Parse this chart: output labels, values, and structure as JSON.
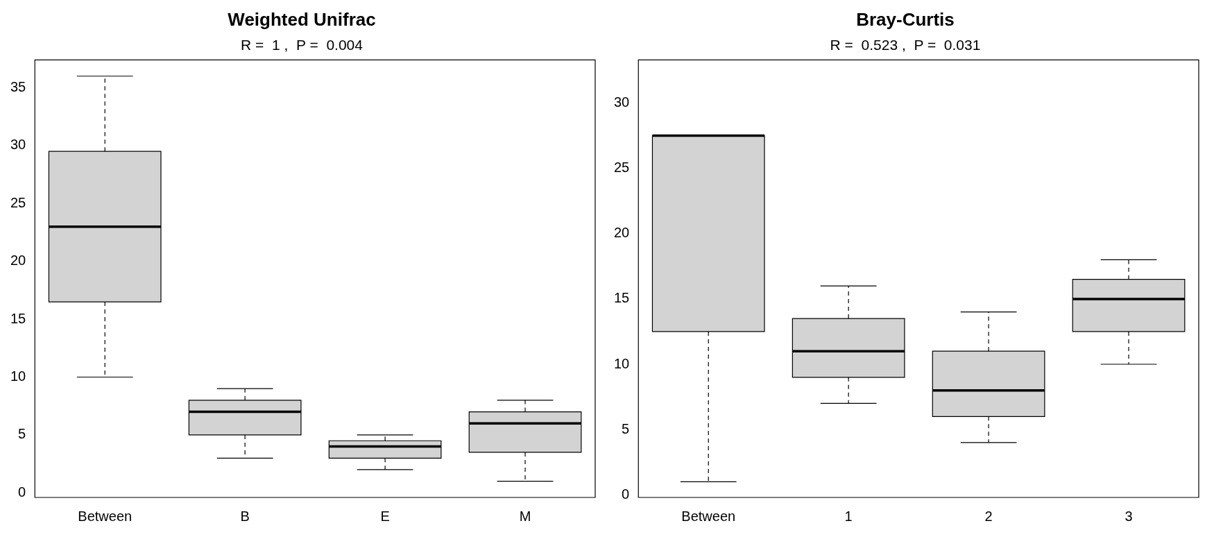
{
  "chart_data": [
    {
      "type": "box",
      "title": "Weighted Unifrac",
      "subtitle": "R =  1 ,  P =  0.004",
      "categories": [
        "Between",
        "B",
        "E",
        "M"
      ],
      "color": "#d3d3d3",
      "ylim": [
        -0.4,
        37.4
      ],
      "yticks": [
        0,
        5,
        10,
        15,
        20,
        25,
        30,
        35
      ],
      "boxes": [
        {
          "low": 10,
          "q1": 16.5,
          "median": 23,
          "q3": 29.5,
          "high": 36
        },
        {
          "low": 3,
          "q1": 5,
          "median": 7,
          "q3": 8,
          "high": 9
        },
        {
          "low": 2,
          "q1": 3,
          "median": 4,
          "q3": 4.5,
          "high": 5
        },
        {
          "low": 1,
          "q1": 3.5,
          "median": 6,
          "q3": 7,
          "high": 8
        }
      ]
    },
    {
      "type": "box",
      "title": "Bray-Curtis",
      "subtitle": "R =  0.523 ,  P =  0.031",
      "categories": [
        "Between",
        "1",
        "2",
        "3"
      ],
      "color": "#d3d3d3",
      "ylim": [
        -0.2,
        33.3
      ],
      "yticks": [
        0,
        5,
        10,
        15,
        20,
        25,
        30
      ],
      "boxes": [
        {
          "low": 1,
          "q1": 12.5,
          "median": 27.5,
          "q3": 27.5,
          "high": 27.5
        },
        {
          "low": 7,
          "q1": 9,
          "median": 11,
          "q3": 13.5,
          "high": 16
        },
        {
          "low": 4,
          "q1": 6,
          "median": 8,
          "q3": 11,
          "high": 14
        },
        {
          "low": 10,
          "q1": 12.5,
          "median": 15,
          "q3": 16.5,
          "high": 18
        }
      ]
    }
  ]
}
